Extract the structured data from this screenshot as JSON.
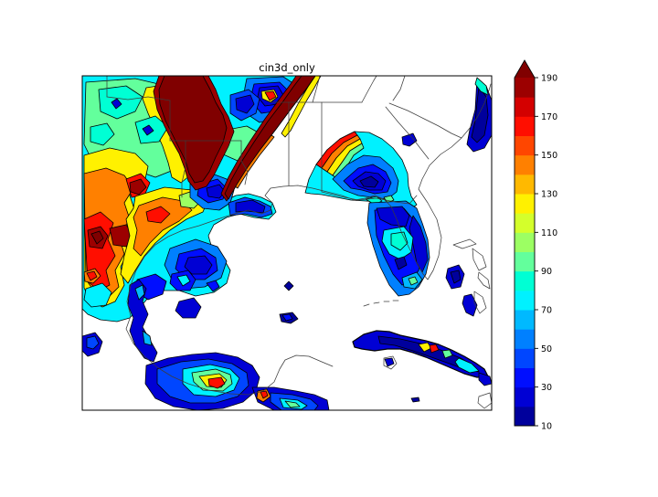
{
  "chart_data": {
    "type": "filled-contour-map",
    "title": "cin3d_only",
    "region": "Southeastern United States, Gulf of Mexico, Florida, Cuba, Bahamas and Yucatan Peninsula",
    "colormap": "jet",
    "contour_interval": 10,
    "contour_levels": [
      10,
      20,
      30,
      40,
      50,
      60,
      70,
      80,
      90,
      100,
      110,
      120,
      130,
      140,
      150,
      160,
      170,
      180,
      190
    ],
    "palette": [
      "#00009C",
      "#0000D4",
      "#000EFF",
      "#0046FF",
      "#0080FF",
      "#00B9FF",
      "#00F1FF",
      "#00FFD4",
      "#63FF9C",
      "#9CFF63",
      "#D4FF2B",
      "#FFF100",
      "#FFB900",
      "#FF8000",
      "#FF4600",
      "#FF0E00",
      "#D40000",
      "#9C0000"
    ],
    "over_color": "#800000",
    "no_data_color": "#ffffff",
    "line_color": "#3c3c3c",
    "colorbar": {
      "orientation": "vertical",
      "extend": "max",
      "vmin": 10,
      "vmax": 190,
      "ticks": [
        10,
        30,
        50,
        70,
        90,
        110,
        130,
        150,
        170,
        190
      ]
    },
    "features": [
      {
        "area": "Texas / Oklahoma / Arkansas / Louisiana",
        "values": "dense contour field spanning 10-190 with saturated >190 maxima"
      },
      {
        "area": "northeastern data-domain boundary",
        "values": "saturated >190 dark red diagonal band"
      },
      {
        "area": "Georgia / Alabama / Florida panhandle",
        "values": "broad 10-60 minimum rising sharply to >150 at northwest edge"
      },
      {
        "area": "Florida peninsula",
        "values": "20-90 with small aquamarine core"
      },
      {
        "area": "Atlantic coast off the Carolinas",
        "values": "narrow 10-80 coastal band"
      },
      {
        "area": "Cuba",
        "values": "mostly 10-40 with isolated 110-170 spots"
      },
      {
        "area": "Bahamas",
        "values": "isolated 10-30 patches"
      },
      {
        "area": "Bay of Campeche / Yucatan",
        "values": "bullseye 10-160 with red core"
      },
      {
        "area": "northeastern Mexico coast",
        "values": "ragged 10-150 strip"
      },
      {
        "area": "central Gulf of Mexico",
        "values": "no data (white)"
      }
    ]
  }
}
